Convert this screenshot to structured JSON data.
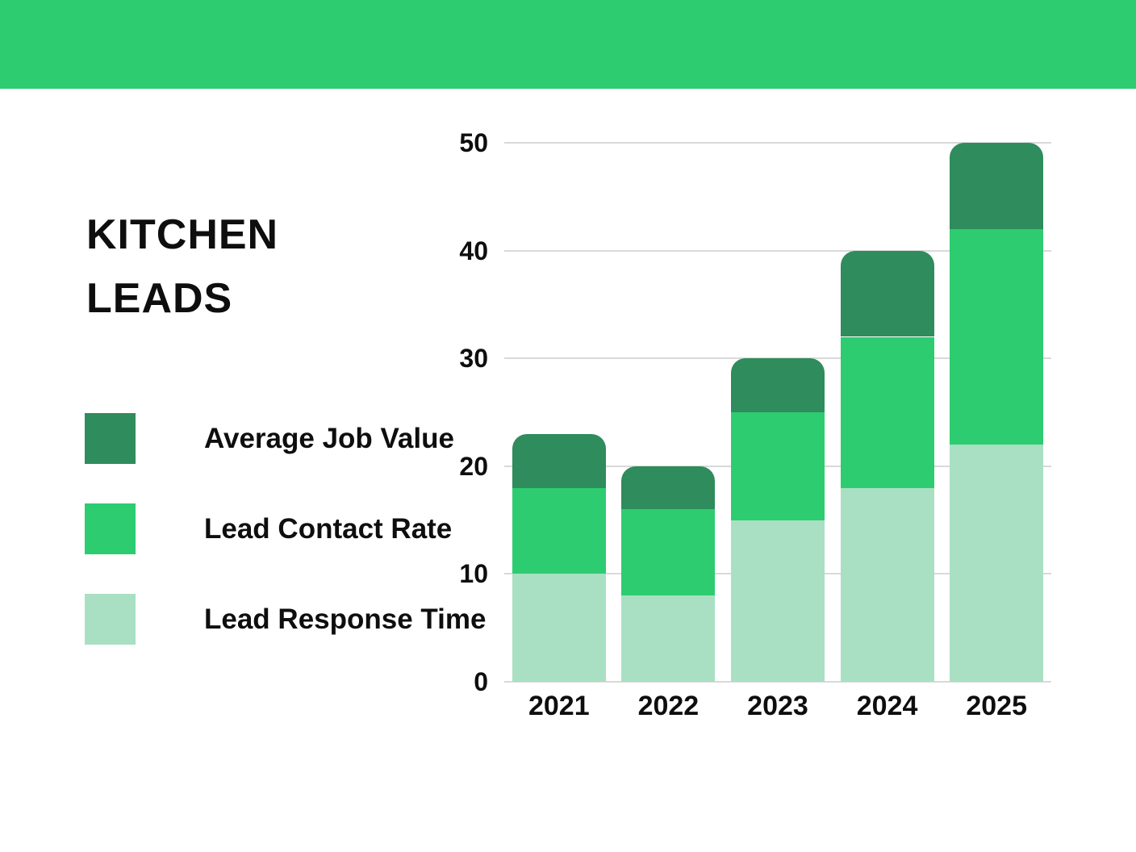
{
  "title": {
    "line1": "KITCHEN",
    "line2": "LEADS"
  },
  "colors": {
    "banner": "#2ecc71",
    "dark_green": "#2f8c5c",
    "medium_green": "#2ecc71",
    "light_green": "#a9e0c3",
    "gridline": "#d9d9d9",
    "text": "#0e0e0e",
    "background": "#ffffff"
  },
  "legend": [
    {
      "label": "Average Job Value",
      "color": "#2f8c5c"
    },
    {
      "label": "Lead Contact Rate",
      "color": "#2ecc71"
    },
    {
      "label": "Lead Response Time",
      "color": "#a9e0c3"
    }
  ],
  "chart_data": {
    "type": "bar",
    "stacked": true,
    "stack_order": "bottom-to-top",
    "categories": [
      "2021",
      "2022",
      "2023",
      "2024",
      "2025"
    ],
    "series": [
      {
        "name": "Lead Response Time",
        "color": "#a9e0c3",
        "values": [
          10,
          8,
          15,
          18,
          22
        ]
      },
      {
        "name": "Lead Contact Rate",
        "color": "#2ecc71",
        "values": [
          8,
          8,
          10,
          14,
          20
        ]
      },
      {
        "name": "Average Job Value",
        "color": "#2f8c5c",
        "values": [
          5,
          4,
          5,
          8,
          8
        ]
      }
    ],
    "totals": [
      23,
      20,
      30,
      40,
      50
    ],
    "title": "KITCHEN LEADS",
    "xlabel": "",
    "ylabel": "",
    "ylim": [
      0,
      50
    ],
    "yticks": [
      0,
      10,
      20,
      30,
      40,
      50
    ],
    "grid": true,
    "legend_position": "left"
  }
}
